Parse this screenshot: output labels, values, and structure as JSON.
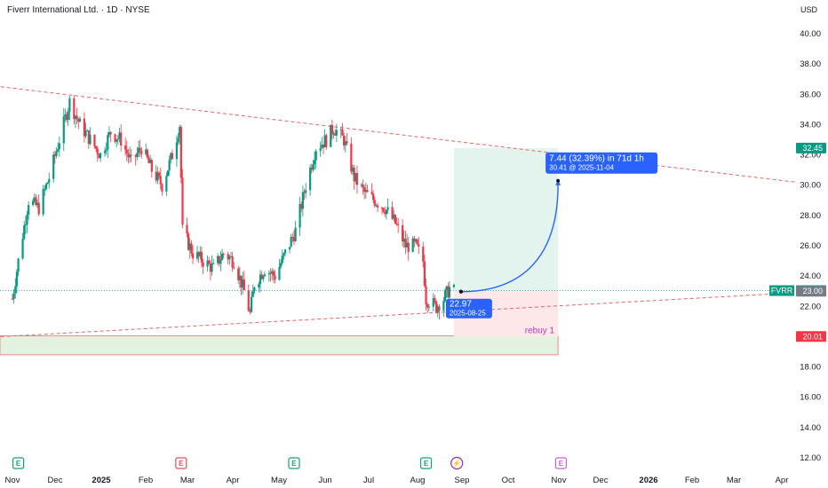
{
  "header": {
    "symbol_title": "Fiverr International Ltd. · 1D · NYSE",
    "currency": "USD"
  },
  "colors": {
    "up": "#089981",
    "down": "#f23645",
    "trend": "#e06666",
    "arrow": "#2962ff",
    "profit_zone": "#e3f4ef",
    "loss_zone": "#fde7e9",
    "support_zone": "#e3f2e0",
    "support_border": "#e57373",
    "event_e": "#1a9f75",
    "event_earn_red": "#e0515a",
    "event_div": "#9c27b0",
    "event_e_pink": "#cf5fd6",
    "rebuy": "#b43fb6"
  },
  "chart_data": {
    "type": "candlestick",
    "y_axis": {
      "min": 11.0,
      "max": 42.0,
      "ticks": [
        "12.00",
        "14.00",
        "16.00",
        "18.00",
        "20.00",
        "22.00",
        "24.00",
        "26.00",
        "28.00",
        "30.00",
        "32.00",
        "34.00",
        "36.00",
        "38.00",
        "40.00"
      ]
    },
    "x_axis": {
      "ticks": [
        "Nov",
        "Dec",
        "2025",
        "Feb",
        "Mar",
        "Apr",
        "May",
        "Jun",
        "Jul",
        "Aug",
        "Sep",
        "Oct",
        "Nov",
        "Dec",
        "2026",
        "Feb",
        "Mar",
        "Apr"
      ]
    },
    "price_labels": [
      {
        "label": "",
        "value": "32.45",
        "price": 32.45,
        "color": "#089981"
      },
      {
        "label": "FVRR",
        "value": "23.04",
        "price": 23.04,
        "color": "#089981"
      },
      {
        "label": "",
        "value": "23.00",
        "price": 23.0,
        "color": "#787b86"
      },
      {
        "label": "",
        "value": "20.01",
        "price": 20.01,
        "color": "#f23645"
      }
    ],
    "candles_anchor": [
      {
        "d": "2024-10-28",
        "p": 22.5
      },
      {
        "d": "2024-11-01",
        "p": 25.0
      },
      {
        "d": "2024-11-08",
        "p": 29.0
      },
      {
        "d": "2024-11-15",
        "p": 28.5
      },
      {
        "d": "2024-11-22",
        "p": 30.5
      },
      {
        "d": "2024-11-29",
        "p": 33.0
      },
      {
        "d": "2024-12-06",
        "p": 35.5
      },
      {
        "d": "2024-12-13",
        "p": 34.0
      },
      {
        "d": "2024-12-20",
        "p": 33.0
      },
      {
        "d": "2024-12-27",
        "p": 32.0
      },
      {
        "d": "2025-01-03",
        "p": 33.5
      },
      {
        "d": "2025-01-10",
        "p": 33.0
      },
      {
        "d": "2025-01-17",
        "p": 31.5
      },
      {
        "d": "2025-01-24",
        "p": 32.5
      },
      {
        "d": "2025-01-31",
        "p": 31.0
      },
      {
        "d": "2025-02-07",
        "p": 30.0
      },
      {
        "d": "2025-02-14",
        "p": 32.0
      },
      {
        "d": "2025-02-19",
        "p": 34.0
      },
      {
        "d": "2025-02-21",
        "p": 27.0
      },
      {
        "d": "2025-02-28",
        "p": 25.5
      },
      {
        "d": "2025-03-07",
        "p": 25.0
      },
      {
        "d": "2025-03-14",
        "p": 24.5
      },
      {
        "d": "2025-03-21",
        "p": 25.5
      },
      {
        "d": "2025-03-28",
        "p": 25.0
      },
      {
        "d": "2025-04-04",
        "p": 23.0
      },
      {
        "d": "2025-04-08",
        "p": 21.5
      },
      {
        "d": "2025-04-11",
        "p": 23.5
      },
      {
        "d": "2025-04-18",
        "p": 24.5
      },
      {
        "d": "2025-04-25",
        "p": 24.0
      },
      {
        "d": "2025-05-02",
        "p": 25.5
      },
      {
        "d": "2025-05-09",
        "p": 27.0
      },
      {
        "d": "2025-05-16",
        "p": 30.0
      },
      {
        "d": "2025-05-23",
        "p": 32.5
      },
      {
        "d": "2025-05-30",
        "p": 33.0
      },
      {
        "d": "2025-06-04",
        "p": 33.8
      },
      {
        "d": "2025-06-11",
        "p": 33.0
      },
      {
        "d": "2025-06-18",
        "p": 30.5
      },
      {
        "d": "2025-06-25",
        "p": 29.5
      },
      {
        "d": "2025-07-02",
        "p": 29.0
      },
      {
        "d": "2025-07-09",
        "p": 28.5
      },
      {
        "d": "2025-07-16",
        "p": 27.5
      },
      {
        "d": "2025-07-23",
        "p": 26.0
      },
      {
        "d": "2025-07-30",
        "p": 26.0
      },
      {
        "d": "2025-08-04",
        "p": 25.0
      },
      {
        "d": "2025-08-06",
        "p": 22.5
      },
      {
        "d": "2025-08-13",
        "p": 22.0
      },
      {
        "d": "2025-08-18",
        "p": 22.5
      },
      {
        "d": "2025-08-22",
        "p": 23.2
      },
      {
        "d": "2025-08-25",
        "p": 23.0
      }
    ],
    "trendlines": [
      {
        "name": "resistance",
        "from": {
          "d": "2024-10-20",
          "p": 36.5
        },
        "to": {
          "d": "2026-04-15",
          "p": 30.2
        }
      },
      {
        "name": "support",
        "from": {
          "d": "2024-10-20",
          "p": 20.0
        },
        "to": {
          "d": "2026-04-15",
          "p": 22.9
        }
      }
    ],
    "position": {
      "entry": 23.04,
      "target": 32.45,
      "stop": 20.01,
      "start": "2025-08-25",
      "end": "2025-11-04"
    },
    "support_zone": {
      "top": 20.05,
      "bottom": 18.8,
      "start": "2024-10-20",
      "end": "2025-11-04"
    },
    "projection": {
      "from": {
        "d": "2025-08-25",
        "p": 22.97
      },
      "to": {
        "d": "2025-11-04",
        "p": 30.41
      },
      "start_label": "22.97",
      "start_date": "2025-08-25",
      "end_line1": "7.44 (32.39%) in 71d 1h",
      "end_line2": "30.41 @ 2025-11-04"
    },
    "rebuy_label": "rebuy 1",
    "events": [
      {
        "d": "2024-11-01",
        "t": "E",
        "kind": "e"
      },
      {
        "d": "2025-02-20",
        "t": "E",
        "kind": "earn_red"
      },
      {
        "d": "2025-05-08",
        "t": "E",
        "kind": "e"
      },
      {
        "d": "2025-08-06",
        "t": "E",
        "kind": "e"
      },
      {
        "d": "2025-08-27",
        "t": "⚡",
        "kind": "div"
      },
      {
        "d": "2025-11-06",
        "t": "E",
        "kind": "e_pink"
      }
    ]
  }
}
